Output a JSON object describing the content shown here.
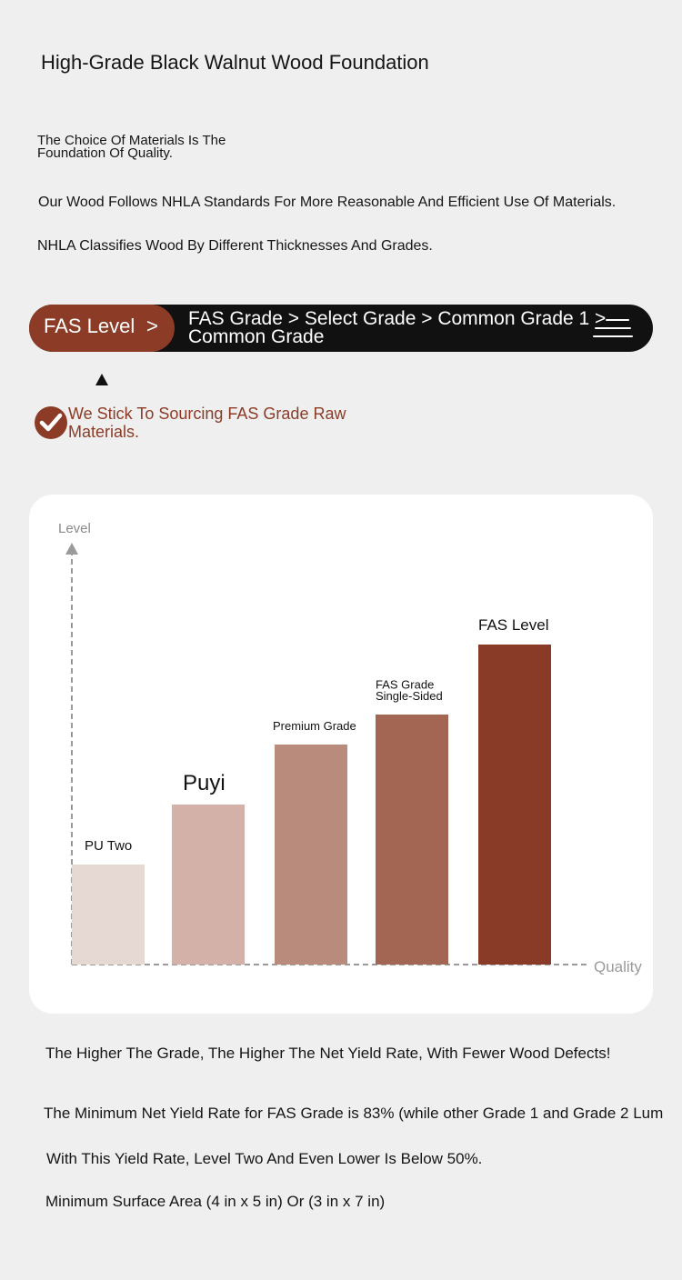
{
  "header": {
    "title": "High-Grade Black Walnut Wood Foundation",
    "intro": "The Choice Of Materials Is The Foundation Of Quality.",
    "standards": "Our Wood Follows NHLA Standards For More Reasonable And Efficient Use Of Materials.",
    "classifies": "NHLA Classifies Wood By Different Thicknesses And Grades."
  },
  "grade_bar": {
    "pill_label": "FAS Level",
    "pill_arrow": ">",
    "grades_text": "FAS Grade > Select Grade > Common Grade 1 > Common Grade",
    "icon": "menu-icon"
  },
  "commitment": {
    "icon": "check-circle-icon",
    "text": "We Stick To Sourcing FAS Grade Raw Materials."
  },
  "chart_data": {
    "type": "bar",
    "categories": [
      "PU Two",
      "Puyi",
      "Premium Grade",
      "FAS Grade Single-Sided",
      "FAS Level"
    ],
    "category_lines": [
      [
        "PU Two"
      ],
      [
        "Puyi"
      ],
      [
        "Premium Grade"
      ],
      [
        "FAS Grade",
        "Single-Sided"
      ],
      [
        "FAS Level"
      ]
    ],
    "values": [
      1.0,
      1.6,
      2.2,
      2.5,
      3.2
    ],
    "colors": [
      "#e6d8d3",
      "#d3b1a8",
      "#b98b7c",
      "#a36653",
      "#8a3b27"
    ],
    "ylabel": "Level",
    "xlabel": "Quality",
    "ylim": [
      0,
      4
    ],
    "grid": false,
    "axes": "dashed-arrows"
  },
  "footer": {
    "higher": "The Higher The Grade, The Higher The Net Yield Rate, With Fewer Wood Defects!",
    "minimum": "The Minimum Net Yield Rate for FAS Grade is 83% (while other Grade 1 and Grade 2 Lum",
    "yield": "With This Yield Rate, Level Two And Even Lower Is Below 50%.",
    "surface": "Minimum Surface Area (4 in x 5 in) Or (3 in x 7 in)"
  }
}
